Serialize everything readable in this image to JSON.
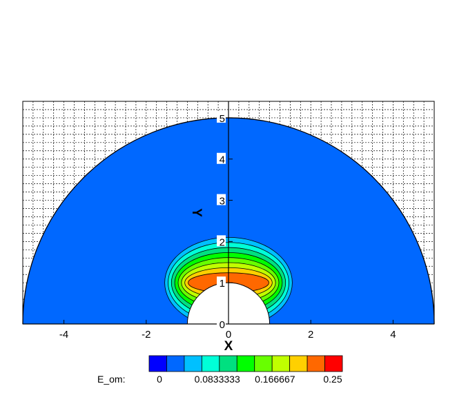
{
  "chart_data": {
    "type": "contour",
    "xlabel": "X",
    "ylabel": "Y",
    "xlim": [
      -5,
      5
    ],
    "ylim": [
      0,
      5.4
    ],
    "x_ticks": [
      "-4",
      "-2",
      "0",
      "2",
      "4"
    ],
    "x_tick_values": [
      -4,
      -2,
      0,
      2,
      4
    ],
    "y_ticks": [
      "0",
      "1",
      "2",
      "3",
      "4",
      "5"
    ],
    "y_tick_values": [
      0,
      1,
      2,
      3,
      4,
      5
    ],
    "grid": true,
    "domain": {
      "shape": "half-annulus",
      "inner_radius": 1,
      "outer_radius": 5
    },
    "contour_region": {
      "center": [
        0,
        1.0
      ],
      "approx_outer_extent_x": 1.55,
      "approx_outer_extent_y": 2.1
    },
    "legend": {
      "variable": "E_om:",
      "placement": "bottom-center",
      "levels": [
        0,
        0.0833333,
        0.166667,
        0.25
      ],
      "level_labels": [
        "0",
        "0.0833333",
        "0.166667",
        "0.25"
      ],
      "bin_colors": [
        "#0000ff",
        "#0068ff",
        "#00c0ff",
        "#00ffd8",
        "#00e080",
        "#00ff00",
        "#68ff00",
        "#c0ff00",
        "#ffd000",
        "#ff6800",
        "#ff0000"
      ]
    }
  }
}
